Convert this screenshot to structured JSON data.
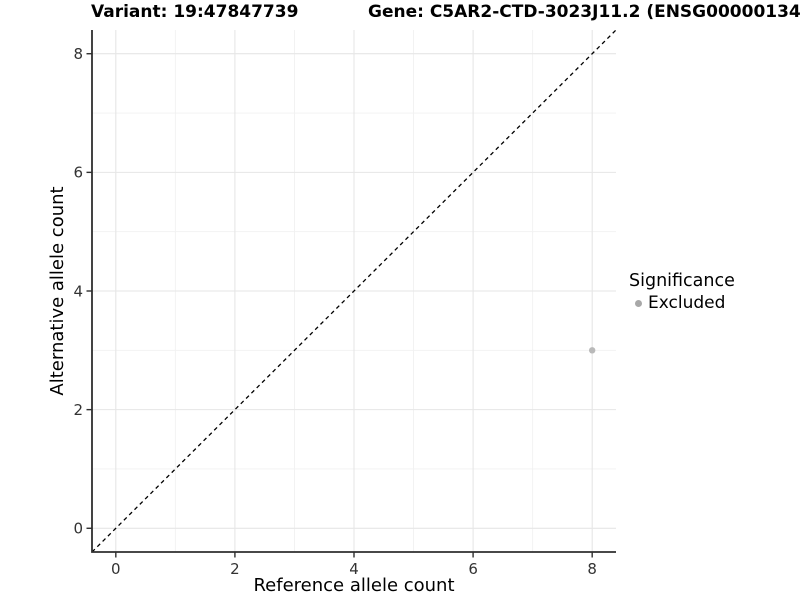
{
  "chart_data": {
    "type": "scatter",
    "title_left": "Variant: 19:47847739",
    "title_right": "Gene: C5AR2-CTD-3023J11.2 (ENSG00000134",
    "xlabel": "Reference allele count",
    "ylabel": "Alternative allele count",
    "xlim": [
      -0.4,
      8.4
    ],
    "ylim": [
      -0.4,
      8.4
    ],
    "xticks": [
      0,
      2,
      4,
      6,
      8
    ],
    "yticks": [
      0,
      2,
      4,
      6,
      8
    ],
    "xminor": [
      1,
      3,
      5,
      7
    ],
    "yminor": [
      1,
      3,
      5,
      7
    ],
    "grid": "major and minor, light gray on white panel",
    "series": [
      {
        "name": "Excluded",
        "color": "#b9b9b9",
        "points": [
          {
            "x": 8,
            "y": 3
          }
        ]
      }
    ],
    "reference_line": {
      "kind": "identity y=x",
      "from": [
        -0.4,
        -0.4
      ],
      "to": [
        8.4,
        8.4
      ],
      "style": "dashed",
      "color": "#000000"
    },
    "legend": {
      "title": "Significance",
      "position": "right",
      "entries": [
        {
          "label": "Excluded",
          "color": "#a8a8a8"
        }
      ]
    },
    "colors": {
      "axis": "#2f2f2f",
      "grid_major": "#e6e6e6",
      "grid_minor": "#f1f1f1",
      "tick_text": "#333333",
      "point": "#b9b9b9"
    }
  }
}
